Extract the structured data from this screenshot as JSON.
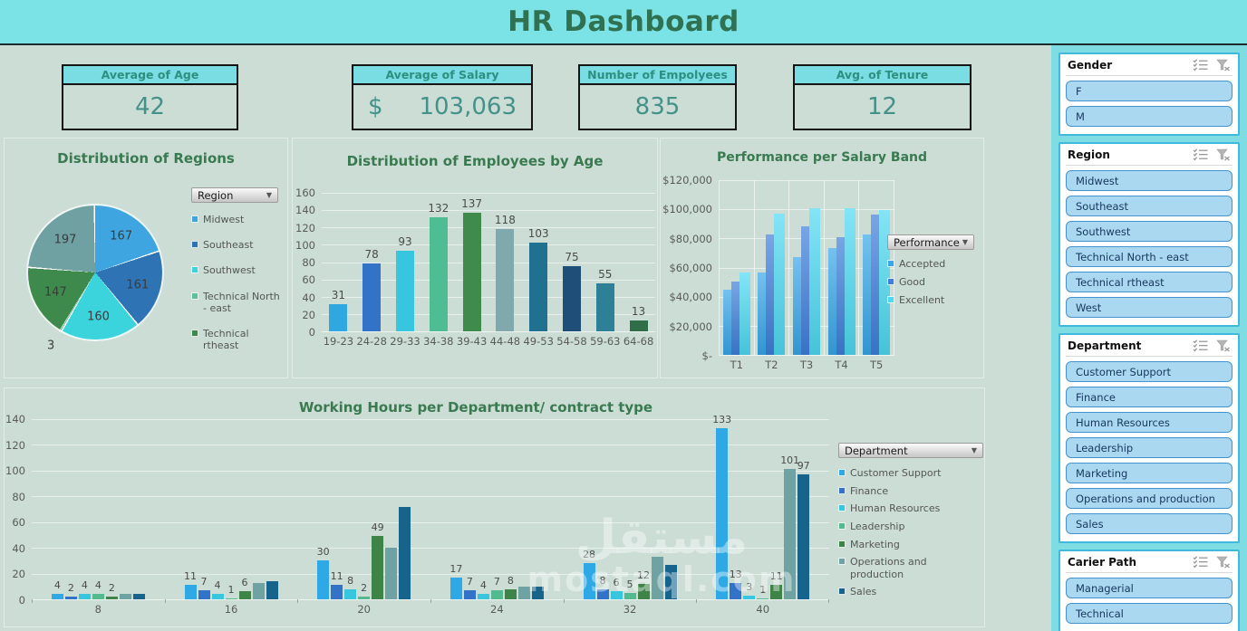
{
  "app": {
    "title": "HR Dashboard",
    "watermark_line1": "مستقل",
    "watermark_line2": "mostaql.com"
  },
  "colors": {
    "banner": "#7BE2E6",
    "background": "#CBDDD5",
    "title_green": "#2F7150",
    "chart_title_green": "#3A7A50",
    "kpi_header_bg": "#79DDE3",
    "kpi_value_text": "#449188",
    "sidebar_bg": "#7EDCE2",
    "slicer_border": "#3FB9DC",
    "slicer_item_bg": "#A9D8F0",
    "slicer_item_border": "#4493CE",
    "axis_text": "#5a5a5a"
  },
  "kpis": [
    {
      "label": "Average of Age",
      "value": "42"
    },
    {
      "label": "Average of  Salary",
      "prefix": "$",
      "value": "103,063"
    },
    {
      "label": "Number of Empolyees",
      "value": "835"
    },
    {
      "label": "Avg. of Tenure",
      "value": "12"
    }
  ],
  "slicers": [
    {
      "title": "Gender",
      "items": [
        "F",
        "M"
      ]
    },
    {
      "title": "Region",
      "items": [
        "Midwest",
        "Southeast",
        "Southwest",
        "Technical North - east",
        "Technical rtheast",
        "West"
      ]
    },
    {
      "title": "Department",
      "items": [
        "Customer Support",
        "Finance",
        "Human Resources",
        "Leadership",
        "Marketing",
        "Operations and production",
        "Sales"
      ]
    },
    {
      "title": "Carier Path",
      "items": [
        "Managerial",
        "Technical"
      ]
    }
  ],
  "chart_data": [
    {
      "id": "regions_pie",
      "type": "pie",
      "title": "Distribution of Regions",
      "filter_label": "Region",
      "slices": [
        {
          "label": "Midwest",
          "value": 167,
          "color": "#3FA5E0"
        },
        {
          "label": "Southeast",
          "value": 161,
          "color": "#2E74B5"
        },
        {
          "label": "Southwest",
          "value": 160,
          "color": "#3BD3DC"
        },
        {
          "label": "Technical North - east",
          "value": 3,
          "color": "#5BBF99"
        },
        {
          "label": "Technical rtheast",
          "value": 147,
          "color": "#3E8A4C"
        },
        {
          "label": "West",
          "value": 197,
          "color": "#6FA0A2"
        }
      ],
      "legend_visible": 5,
      "total": 835
    },
    {
      "id": "employees_by_age",
      "type": "bar",
      "title": "Distribution of Employees by Age",
      "categories": [
        "19-23",
        "24-28",
        "29-33",
        "34-38",
        "39-43",
        "44-48",
        "49-53",
        "54-58",
        "59-63",
        "64-68"
      ],
      "values": [
        31,
        78,
        93,
        132,
        137,
        118,
        103,
        75,
        55,
        13
      ],
      "colors": [
        "#2FA8E1",
        "#3273C8",
        "#38C6DE",
        "#4EBD94",
        "#3E8B4B",
        "#7FA9AD",
        "#20708F",
        "#1F4E79",
        "#2E8097",
        "#2F6E46"
      ],
      "ylim": [
        0,
        160
      ],
      "ystep": 20
    },
    {
      "id": "performance_per_salary_band",
      "type": "grouped-bar",
      "title": "Performance per Salary Band",
      "filter_label": "Performance",
      "categories": [
        "T1",
        "T2",
        "T3",
        "T4",
        "T5"
      ],
      "series": [
        {
          "name": "Accepted",
          "color": "#38A6E8",
          "values": [
            45000,
            56500,
            67000,
            73500,
            83000
          ]
        },
        {
          "name": "Good",
          "color": "#3F7EDA",
          "values": [
            50500,
            83000,
            88000,
            81000,
            96500
          ]
        },
        {
          "name": "Excellent",
          "color": "#4ED9F2",
          "values": [
            56500,
            97000,
            101000,
            100500,
            99500
          ]
        }
      ],
      "ylim": [
        0,
        120000
      ],
      "ystep": 20000,
      "ytick_format": "currency"
    },
    {
      "id": "working_hours",
      "type": "grouped-bar",
      "title": "Working Hours per Department/ contract type",
      "filter_label": "Department",
      "categories": [
        "8",
        "16",
        "20",
        "24",
        "32",
        "40"
      ],
      "series": [
        {
          "name": "Customer Support",
          "color": "#2EA9E5",
          "values": [
            4,
            11,
            30,
            17,
            28,
            133
          ],
          "labels": [
            4,
            11,
            30,
            17,
            28,
            133
          ]
        },
        {
          "name": "Finance",
          "color": "#3273C8",
          "values": [
            2,
            7,
            11,
            7,
            8,
            13
          ],
          "labels": [
            2,
            7,
            11,
            7,
            8,
            13
          ]
        },
        {
          "name": "Human Resources",
          "color": "#38C6DE",
          "values": [
            4,
            4,
            8,
            4,
            6,
            3
          ],
          "labels": [
            4,
            4,
            8,
            4,
            6,
            3
          ]
        },
        {
          "name": "Leadership",
          "color": "#52BA8E",
          "values": [
            4,
            1,
            2,
            7,
            5,
            1
          ],
          "labels": [
            4,
            1,
            2,
            7,
            5,
            1
          ]
        },
        {
          "name": "Marketing",
          "color": "#3E8348",
          "values": [
            2,
            6,
            49,
            8,
            12,
            11
          ],
          "labels": [
            2,
            6,
            49,
            8,
            12,
            11
          ]
        },
        {
          "name": "Operations and production",
          "color": "#6FA3A3",
          "values": [
            4,
            13,
            40,
            10,
            33,
            101
          ],
          "labels": [
            null,
            null,
            null,
            null,
            null,
            101
          ]
        },
        {
          "name": "Sales",
          "color": "#16638C",
          "values": [
            4,
            14,
            72,
            10,
            27,
            97
          ],
          "labels": [
            null,
            null,
            null,
            null,
            null,
            97
          ]
        }
      ],
      "ylim": [
        0,
        140
      ],
      "ystep": 20
    }
  ]
}
